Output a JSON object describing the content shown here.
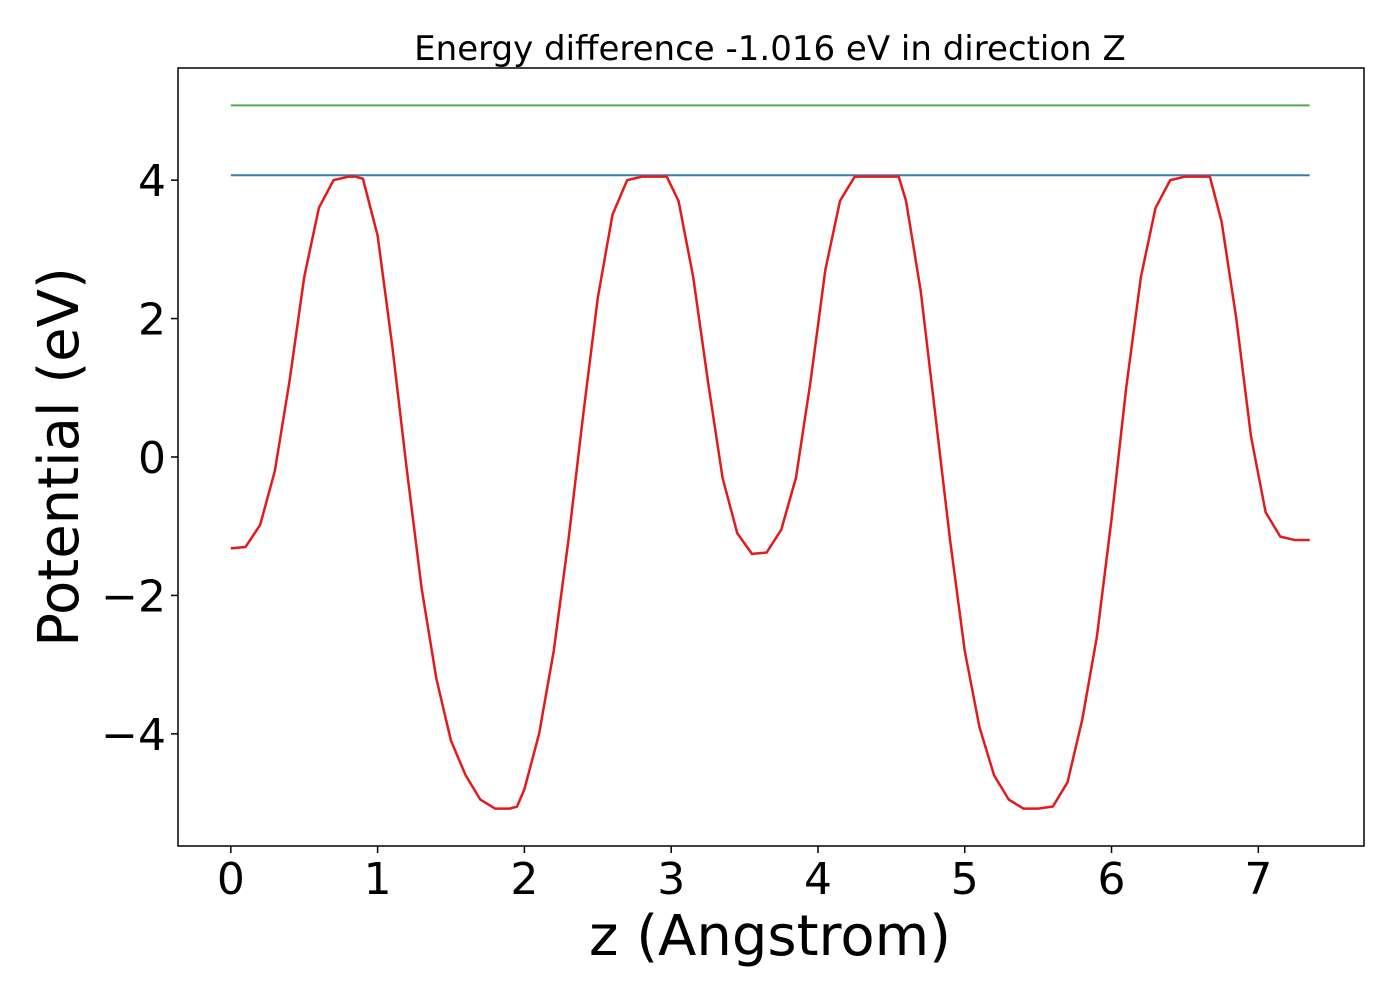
{
  "chart_data": {
    "type": "line",
    "title": "Energy difference -1.016 eV in direction Z",
    "xlabel": "z (Angstrom)",
    "ylabel": "Potential (eV)",
    "xlim": [
      -0.36,
      7.72
    ],
    "ylim": [
      -5.62,
      5.62
    ],
    "xticks": [
      0,
      1,
      2,
      3,
      4,
      5,
      6,
      7
    ],
    "yticks": [
      -4,
      -2,
      0,
      2,
      4
    ],
    "xtick_labels": [
      "0",
      "1",
      "2",
      "3",
      "4",
      "5",
      "6",
      "7"
    ],
    "ytick_labels": [
      "−4",
      "−2",
      "0",
      "2",
      "4"
    ],
    "grid": false,
    "series": [
      {
        "color": "#e31a1c",
        "x": [
          0.0,
          0.1,
          0.2,
          0.3,
          0.4,
          0.5,
          0.6,
          0.7,
          0.8,
          0.85,
          0.9,
          1.0,
          1.1,
          1.2,
          1.3,
          1.4,
          1.5,
          1.6,
          1.7,
          1.8,
          1.9,
          1.95,
          2.0,
          2.1,
          2.2,
          2.3,
          2.4,
          2.5,
          2.6,
          2.7,
          2.8,
          2.9,
          2.97,
          3.05,
          3.15,
          3.25,
          3.35,
          3.45,
          3.55,
          3.65,
          3.75,
          3.85,
          3.95,
          4.05,
          4.15,
          4.25,
          4.35,
          4.45,
          4.55,
          4.6,
          4.7,
          4.8,
          4.9,
          5.0,
          5.1,
          5.2,
          5.3,
          5.4,
          5.5,
          5.6,
          5.7,
          5.8,
          5.9,
          6.0,
          6.1,
          6.2,
          6.3,
          6.4,
          6.5,
          6.6,
          6.67,
          6.75,
          6.85,
          6.95,
          7.05,
          7.15,
          7.25,
          7.35
        ],
        "values": [
          -1.32,
          -1.3,
          -0.98,
          -0.2,
          1.1,
          2.6,
          3.6,
          4.0,
          4.05,
          4.05,
          4.02,
          3.2,
          1.6,
          -0.2,
          -1.9,
          -3.2,
          -4.1,
          -4.6,
          -4.95,
          -5.08,
          -5.08,
          -5.05,
          -4.8,
          -4.0,
          -2.8,
          -1.2,
          0.6,
          2.3,
          3.5,
          4.0,
          4.05,
          4.05,
          4.05,
          3.7,
          2.6,
          1.1,
          -0.3,
          -1.1,
          -1.4,
          -1.38,
          -1.05,
          -0.3,
          1.1,
          2.7,
          3.7,
          4.05,
          4.05,
          4.05,
          4.05,
          3.7,
          2.4,
          0.6,
          -1.2,
          -2.8,
          -3.9,
          -4.6,
          -4.95,
          -5.08,
          -5.08,
          -5.05,
          -4.7,
          -3.8,
          -2.6,
          -0.9,
          1.0,
          2.6,
          3.6,
          4.0,
          4.05,
          4.05,
          4.05,
          3.4,
          2.0,
          0.3,
          -0.8,
          -1.15,
          -1.2,
          -1.2
        ]
      },
      {
        "color": "#377eb8",
        "x": [
          0.0,
          7.35
        ],
        "values": [
          4.07,
          4.07
        ]
      },
      {
        "color": "#4daf4a",
        "x": [
          0.0,
          7.35
        ],
        "values": [
          5.08,
          5.08
        ]
      }
    ]
  }
}
